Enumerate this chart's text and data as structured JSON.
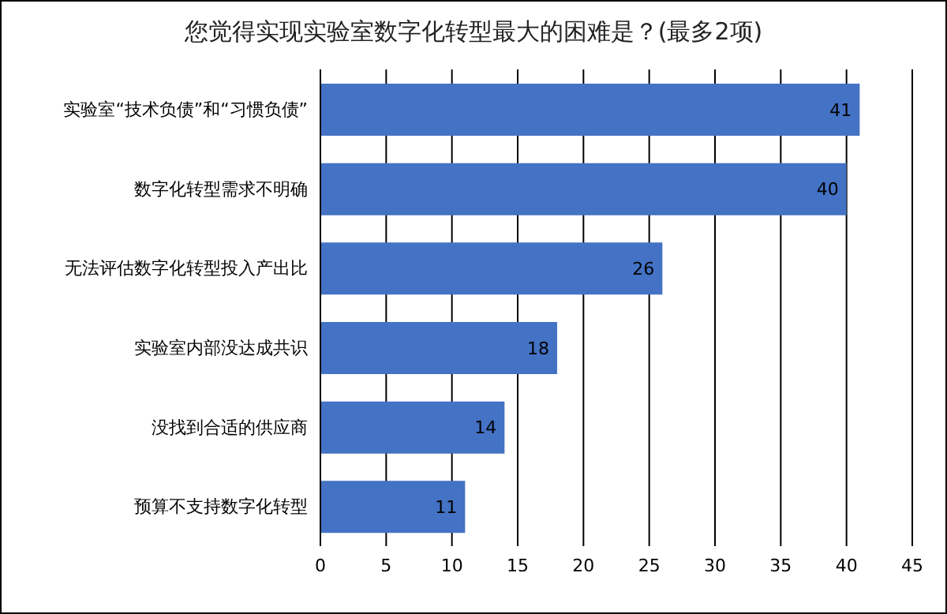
{
  "chart_data": {
    "type": "bar",
    "orientation": "horizontal",
    "title": "您觉得实现实验室数字化转型最大的困难是？(最多2项)",
    "categories": [
      "实验室“技术负债”和“习惯负债”",
      "数字化转型需求不明确",
      "无法评估数字化转型投入产出比",
      "实验室内部没达成共识",
      "没找到合适的供应商",
      "预算不支持数字化转型"
    ],
    "values": [
      41,
      40,
      26,
      18,
      14,
      11
    ],
    "color": "#4472c4",
    "xlim": [
      0,
      45
    ],
    "xticks": [
      0,
      5,
      10,
      15,
      20,
      25,
      30,
      35,
      40,
      45
    ],
    "grid": "x",
    "data_labels": true
  }
}
